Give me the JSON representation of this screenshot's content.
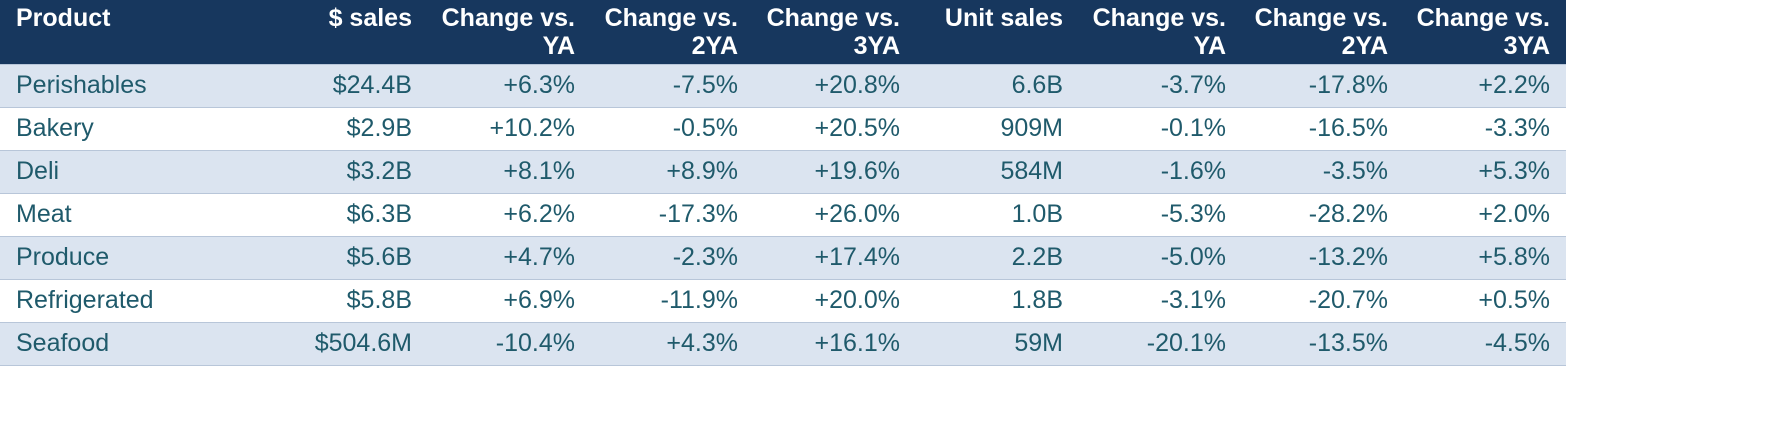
{
  "chart_data": {
    "type": "table",
    "columns": [
      "Product",
      "$ sales",
      "Change vs. YA",
      "Change vs. 2YA",
      "Change vs. 3YA",
      "Unit sales",
      "Change vs. YA",
      "Change vs. 2YA",
      "Change vs. 3YA"
    ],
    "rows": [
      [
        "Perishables",
        "$24.4B",
        "+6.3%",
        "-7.5%",
        "+20.8%",
        "6.6B",
        "-3.7%",
        "-17.8%",
        "+2.2%"
      ],
      [
        "Bakery",
        "$2.9B",
        "+10.2%",
        "-0.5%",
        "+20.5%",
        "909M",
        "-0.1%",
        "-16.5%",
        "-3.3%"
      ],
      [
        "Deli",
        "$3.2B",
        "+8.1%",
        "+8.9%",
        "+19.6%",
        "584M",
        "-1.6%",
        "-3.5%",
        "+5.3%"
      ],
      [
        "Meat",
        "$6.3B",
        "+6.2%",
        "-17.3%",
        "+26.0%",
        "1.0B",
        "-5.3%",
        "-28.2%",
        "+2.0%"
      ],
      [
        "Produce",
        "$5.6B",
        "+4.7%",
        "-2.3%",
        "+17.4%",
        "2.2B",
        "-5.0%",
        "-13.2%",
        "+5.8%"
      ],
      [
        "Refrigerated",
        "$5.8B",
        "+6.9%",
        "-11.9%",
        "+20.0%",
        "1.8B",
        "-3.1%",
        "-20.7%",
        "+0.5%"
      ],
      [
        "Seafood",
        "$504.6M",
        "-10.4%",
        "+4.3%",
        "+16.1%",
        "59M",
        "-20.1%",
        "-13.5%",
        "-4.5%"
      ]
    ]
  },
  "colors": {
    "header_bg": "#17375e",
    "header_text": "#ffffff",
    "row_shade": "#dbe4f0",
    "row_plain": "#ffffff",
    "cell_text": "#1f5a6b"
  }
}
